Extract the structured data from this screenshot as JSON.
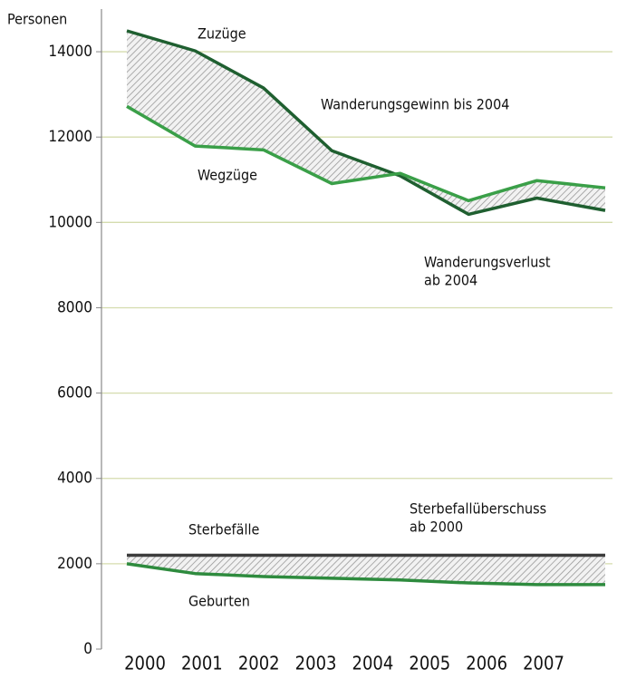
{
  "chart_data": {
    "type": "line",
    "y_label": "Personen",
    "categories": [
      "2000",
      "2001",
      "2002",
      "2003",
      "2004",
      "2005",
      "2006",
      "2007"
    ],
    "series": [
      {
        "name": "Zuzüge",
        "color": "#1f5f30",
        "values": [
          14490,
          14020,
          13150,
          11680,
          11090,
          10190,
          10570,
          10280
        ]
      },
      {
        "name": "Wegzüge",
        "color": "#3a9f48",
        "values": [
          12720,
          11790,
          11700,
          10910,
          11150,
          10510,
          10980,
          10810
        ]
      },
      {
        "name": "Sterbefälle",
        "color": "#3c3c3c",
        "values": [
          2200,
          2200,
          2200,
          2200,
          2200,
          2200,
          2200,
          2200
        ]
      },
      {
        "name": "Geburten",
        "color": "#2e8b3e",
        "values": [
          2000,
          1770,
          1700,
          1660,
          1620,
          1550,
          1510,
          1510
        ]
      }
    ],
    "annotations": [
      [
        "Wanderungsgewinn bis 2004"
      ],
      [
        "Wanderungsverlust",
        "ab 2004"
      ],
      [
        "Sterbefallüberschuss",
        "ab 2000"
      ]
    ],
    "ylim": [
      0,
      15000
    ],
    "yticks": [
      0,
      2000,
      4000,
      6000,
      8000,
      10000,
      12000,
      14000
    ],
    "grid": true
  }
}
